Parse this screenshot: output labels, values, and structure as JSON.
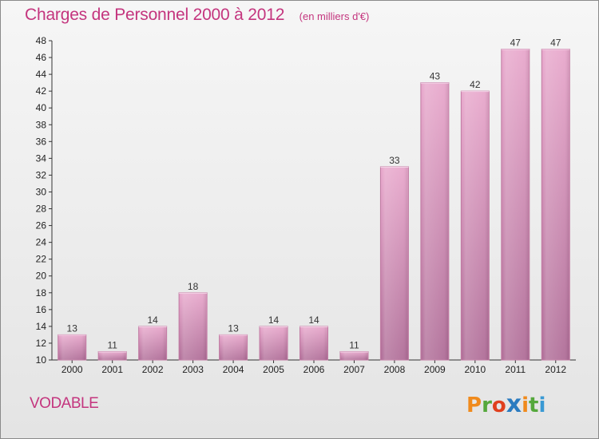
{
  "chart_data": {
    "type": "bar",
    "title": "Charges de Personnel 2000 à 2012",
    "subtitle": "(en milliers d'€)",
    "categories": [
      "2000",
      "2001",
      "2002",
      "2003",
      "2004",
      "2005",
      "2006",
      "2007",
      "2008",
      "2009",
      "2010",
      "2011",
      "2012"
    ],
    "values": [
      13,
      11,
      14,
      18,
      13,
      14,
      14,
      11,
      33,
      43,
      42,
      47,
      47
    ],
    "ylim": [
      10,
      48
    ],
    "yticks": [
      10,
      12,
      14,
      16,
      18,
      20,
      22,
      24,
      26,
      28,
      30,
      32,
      34,
      36,
      38,
      40,
      42,
      44,
      46,
      48
    ],
    "grid": false,
    "legend": "none",
    "bar_color": "#c8739f"
  },
  "place": "VODABLE",
  "logo": {
    "letters": [
      "P",
      "r",
      "o",
      "x",
      "i",
      "t",
      "i"
    ],
    "colors": [
      "#f08a1c",
      "#55a83c",
      "#e0401e",
      "#2b7bc0",
      "#f08a1c",
      "#55a83c",
      "#3a9ad4"
    ]
  }
}
